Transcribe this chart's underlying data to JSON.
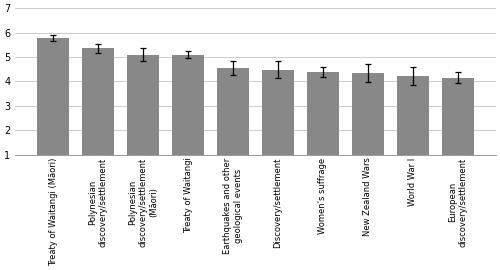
{
  "categories": [
    "Treaty of Waitangi (Māori)",
    "Polynesian\ndiscovery/settlement",
    "Polynesian\ndiscovery/settlement\n(Māori)",
    "Treaty of Waitangi",
    "Earthquakes and other\ngeological events",
    "Discovery/settlement",
    "Women’s suffrage",
    "New Zealand Wars",
    "World War I",
    "European\ndiscovery/settlement"
  ],
  "values": [
    5.78,
    5.35,
    5.1,
    5.1,
    4.55,
    4.47,
    4.4,
    4.35,
    4.22,
    4.15
  ],
  "errors": [
    0.13,
    0.2,
    0.25,
    0.14,
    0.3,
    0.35,
    0.2,
    0.38,
    0.38,
    0.22
  ],
  "bar_color": "#888888",
  "error_color": "#000000",
  "ylim": [
    1,
    7
  ],
  "yticks": [
    1,
    2,
    3,
    4,
    5,
    6,
    7
  ],
  "background_color": "#ffffff",
  "grid_color": "#cccccc",
  "tick_label_fontsize": 6.0,
  "ytick_fontsize": 7.0,
  "bar_width": 0.72
}
